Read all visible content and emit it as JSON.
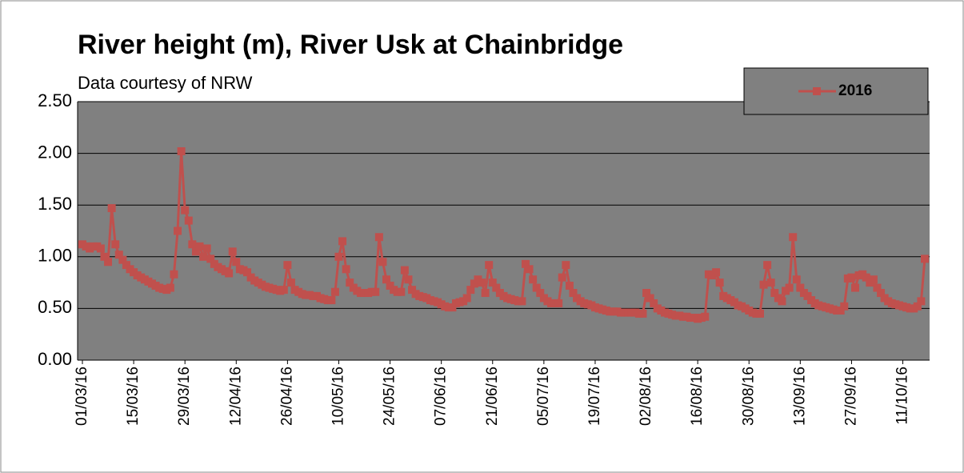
{
  "chart_data": {
    "type": "line",
    "title": "River height (m), River Usk at Chainbridge",
    "subtitle": "Data courtesy of NRW",
    "categories": [
      "01/03/16",
      null,
      null,
      null,
      null,
      null,
      null,
      null,
      null,
      null,
      null,
      null,
      null,
      null,
      "15/03/16",
      null,
      null,
      null,
      null,
      null,
      null,
      null,
      null,
      null,
      null,
      null,
      null,
      null,
      "29/03/16",
      null,
      null,
      null,
      null,
      null,
      null,
      null,
      null,
      null,
      null,
      null,
      null,
      null,
      "12/04/16",
      null,
      null,
      null,
      null,
      null,
      null,
      null,
      null,
      null,
      null,
      null,
      null,
      null,
      "26/04/16",
      null,
      null,
      null,
      null,
      null,
      null,
      null,
      null,
      null,
      null,
      null,
      null,
      null,
      "10/05/16",
      null,
      null,
      null,
      null,
      null,
      null,
      null,
      null,
      null,
      null,
      null,
      null,
      null,
      "24/05/16",
      null,
      null,
      null,
      null,
      null,
      null,
      null,
      null,
      null,
      null,
      null,
      null,
      null,
      "07/06/16",
      null,
      null,
      null,
      null,
      null,
      null,
      null,
      null,
      null,
      null,
      null,
      null,
      null,
      "21/06/16",
      null,
      null,
      null,
      null,
      null,
      null,
      null,
      null,
      null,
      null,
      null,
      null,
      null,
      "05/07/16",
      null,
      null,
      null,
      null,
      null,
      null,
      null,
      null,
      null,
      null,
      null,
      null,
      null,
      "19/07/16",
      null,
      null,
      null,
      null,
      null,
      null,
      null,
      null,
      null,
      null,
      null,
      null,
      null,
      "02/08/16",
      null,
      null,
      null,
      null,
      null,
      null,
      null,
      null,
      null,
      null,
      null,
      null,
      null,
      "16/08/16",
      null,
      null,
      null,
      null,
      null,
      null,
      null,
      null,
      null,
      null,
      null,
      null,
      null,
      "30/08/16",
      null,
      null,
      null,
      null,
      null,
      null,
      null,
      null,
      null,
      null,
      null,
      null,
      null,
      "13/09/16",
      null,
      null,
      null,
      null,
      null,
      null,
      null,
      null,
      null,
      null,
      null,
      null,
      null,
      "27/09/16",
      null,
      null,
      null,
      null,
      null,
      null,
      null,
      null,
      null,
      null,
      null,
      null,
      null,
      "11/10/16",
      null,
      null,
      null,
      null,
      null,
      null
    ],
    "series": [
      {
        "name": "2016",
        "color": "#c0504d",
        "values": [
          1.12,
          1.1,
          1.08,
          1.1,
          1.1,
          1.08,
          1.0,
          0.95,
          1.47,
          1.12,
          1.02,
          0.97,
          0.92,
          0.88,
          0.85,
          0.82,
          0.8,
          0.78,
          0.76,
          0.74,
          0.72,
          0.7,
          0.69,
          0.68,
          0.7,
          0.83,
          1.25,
          2.02,
          1.45,
          1.35,
          1.12,
          1.05,
          1.1,
          1.0,
          1.08,
          0.98,
          0.93,
          0.9,
          0.88,
          0.86,
          0.84,
          1.05,
          0.95,
          0.88,
          0.87,
          0.85,
          0.8,
          0.77,
          0.75,
          0.73,
          0.71,
          0.7,
          0.69,
          0.68,
          0.67,
          0.68,
          0.92,
          0.75,
          0.68,
          0.66,
          0.64,
          0.63,
          0.63,
          0.62,
          0.62,
          0.6,
          0.59,
          0.58,
          0.58,
          0.66,
          1.0,
          1.15,
          0.88,
          0.75,
          0.7,
          0.67,
          0.65,
          0.65,
          0.65,
          0.66,
          0.66,
          1.19,
          0.95,
          0.78,
          0.72,
          0.68,
          0.66,
          0.66,
          0.87,
          0.78,
          0.68,
          0.64,
          0.62,
          0.61,
          0.6,
          0.58,
          0.57,
          0.56,
          0.54,
          0.52,
          0.51,
          0.51,
          0.55,
          0.56,
          0.57,
          0.6,
          0.68,
          0.74,
          0.78,
          0.75,
          0.65,
          0.92,
          0.75,
          0.7,
          0.65,
          0.62,
          0.6,
          0.59,
          0.58,
          0.57,
          0.57,
          0.93,
          0.88,
          0.78,
          0.7,
          0.65,
          0.6,
          0.57,
          0.55,
          0.55,
          0.55,
          0.8,
          0.92,
          0.72,
          0.65,
          0.6,
          0.57,
          0.55,
          0.54,
          0.53,
          0.51,
          0.5,
          0.49,
          0.48,
          0.47,
          0.47,
          0.47,
          0.46,
          0.46,
          0.46,
          0.46,
          0.46,
          0.45,
          0.45,
          0.65,
          0.6,
          0.55,
          0.5,
          0.48,
          0.46,
          0.45,
          0.44,
          0.43,
          0.43,
          0.42,
          0.42,
          0.41,
          0.41,
          0.4,
          0.41,
          0.42,
          0.83,
          0.82,
          0.85,
          0.75,
          0.62,
          0.6,
          0.58,
          0.56,
          0.53,
          0.52,
          0.5,
          0.48,
          0.46,
          0.45,
          0.45,
          0.73,
          0.92,
          0.75,
          0.65,
          0.6,
          0.57,
          0.67,
          0.7,
          1.19,
          0.78,
          0.7,
          0.65,
          0.62,
          0.58,
          0.55,
          0.53,
          0.52,
          0.51,
          0.5,
          0.49,
          0.48,
          0.48,
          0.52,
          0.79,
          0.8,
          0.7,
          0.82,
          0.83,
          0.8,
          0.75,
          0.78,
          0.7,
          0.65,
          0.6,
          0.57,
          0.55,
          0.54,
          0.53,
          0.52,
          0.51,
          0.5,
          0.5,
          0.52,
          0.57,
          0.98
        ]
      }
    ],
    "ylim": [
      0,
      2.5
    ],
    "yticks": [
      {
        "value": 0,
        "label": "0.00"
      },
      {
        "value": 0.5,
        "label": "0.50"
      },
      {
        "value": 1,
        "label": "1.00"
      },
      {
        "value": 1.5,
        "label": "1.50"
      },
      {
        "value": 2,
        "label": "2.00"
      },
      {
        "value": 2.5,
        "label": "2.50"
      }
    ],
    "grid": true,
    "legend": "top-right"
  }
}
